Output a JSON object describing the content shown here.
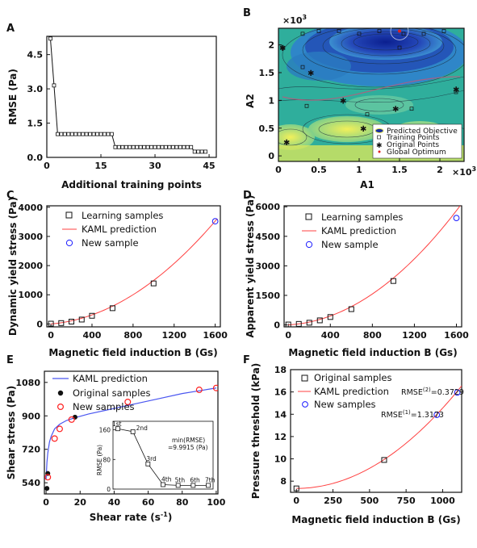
{
  "colors": {
    "model_line": "#ff4040",
    "new_sample": "#1a1aff",
    "learning_sample": "#111111",
    "panel_e_line": "#4a56f0",
    "panel_e_new": "#ff2020",
    "contour_fill_low": "#1a3aa8",
    "contour_fill_mid": "#2fb7b0",
    "contour_fill_high": "#d8e85a"
  },
  "chart_data": [
    {
      "panel": "A",
      "type": "line",
      "xlabel": "Additional training points",
      "ylabel": "RMSE (Pa)",
      "xlim": [
        0,
        47
      ],
      "ylim": [
        0,
        5.3
      ],
      "xticks": [
        "0",
        "15",
        "30",
        "45"
      ],
      "yticks": [
        "0.0",
        "1.5",
        "3.0",
        "4.5"
      ],
      "series": [
        {
          "marker": "square-open",
          "x": [
            1,
            2,
            3,
            4,
            5,
            6,
            7,
            8,
            9,
            10,
            11,
            12,
            13,
            14,
            15,
            16,
            17,
            18,
            19,
            20,
            21,
            22,
            23,
            24,
            25,
            26,
            27,
            28,
            29,
            30,
            31,
            32,
            33,
            34,
            35,
            36,
            37,
            38,
            39,
            40,
            41,
            42,
            43,
            44
          ],
          "y": [
            5.2,
            3.15,
            1.02,
            1.02,
            1.02,
            1.02,
            1.02,
            1.02,
            1.02,
            1.02,
            1.02,
            1.02,
            1.02,
            1.02,
            1.02,
            1.02,
            1.02,
            1.02,
            0.45,
            0.45,
            0.45,
            0.45,
            0.45,
            0.45,
            0.45,
            0.45,
            0.45,
            0.45,
            0.45,
            0.45,
            0.45,
            0.45,
            0.45,
            0.45,
            0.45,
            0.45,
            0.45,
            0.45,
            0.45,
            0.45,
            0.25,
            0.25,
            0.25,
            0.25
          ]
        }
      ]
    },
    {
      "panel": "B",
      "type": "heatmap",
      "xlabel": "A1",
      "ylabel": "A2",
      "x_multiplier": "×10",
      "x_multiplier_exp": "3",
      "y_multiplier": "×10",
      "y_multiplier_exp": "3",
      "xlim": [
        0,
        2.3
      ],
      "ylim": [
        -0.1,
        2.3
      ],
      "xticks": [
        "0",
        "0.5",
        "1",
        "1.5",
        "2"
      ],
      "yticks": [
        "0",
        "0.5",
        "1",
        "1.5",
        "2"
      ],
      "legend": [
        "Predicted Objective",
        "Training Points",
        "Original Points",
        "Global Optimum"
      ],
      "legend_position": "bottom-right",
      "training_points": [
        [
          0.05,
          1.95
        ],
        [
          0.3,
          2.2
        ],
        [
          0.5,
          2.25
        ],
        [
          0.75,
          2.25
        ],
        [
          1.0,
          2.2
        ],
        [
          1.25,
          2.25
        ],
        [
          1.55,
          2.2
        ],
        [
          1.8,
          2.2
        ],
        [
          2.05,
          2.25
        ],
        [
          1.1,
          0.75
        ],
        [
          1.65,
          0.85
        ],
        [
          2.2,
          1.15
        ],
        [
          0.3,
          1.6
        ],
        [
          0.35,
          0.9
        ],
        [
          1.5,
          1.95
        ]
      ],
      "original_points": [
        [
          0.05,
          1.95
        ],
        [
          0.4,
          1.5
        ],
        [
          0.8,
          1.0
        ],
        [
          1.05,
          0.5
        ],
        [
          1.45,
          0.85
        ],
        [
          2.2,
          1.2
        ],
        [
          0.1,
          0.25
        ]
      ],
      "global_optimum": [
        1.5,
        2.25
      ]
    },
    {
      "panel": "C",
      "type": "scatter",
      "xlabel": "Magnetic field induction B (Gs)",
      "ylabel": "Dynamic yield stress (Pa)",
      "xlim": [
        -40,
        1650
      ],
      "ylim": [
        -100,
        4050
      ],
      "xticks": [
        "0",
        "400",
        "800",
        "1200",
        "1600"
      ],
      "yticks": [
        "0",
        "1000",
        "2000",
        "3000",
        "4000"
      ],
      "legend": [
        "Learning samples",
        "KAML prediction",
        "New sample"
      ],
      "legend_position": "top-left",
      "series": [
        {
          "name": "Learning samples",
          "marker": "square-open",
          "x": [
            0,
            100,
            200,
            300,
            400,
            600,
            1000
          ],
          "y": [
            10,
            30,
            80,
            150,
            280,
            540,
            1390
          ]
        },
        {
          "name": "New sample",
          "marker": "circle-open",
          "x": [
            1600
          ],
          "y": [
            3520
          ]
        }
      ],
      "model_curve": {
        "coefficients": [
          0,
          0.3,
          0.00119
        ],
        "x_range": [
          0,
          1620
        ]
      }
    },
    {
      "panel": "D",
      "type": "scatter",
      "xlabel": "Magnetic field induction B (Gs)",
      "ylabel": "Apparent yield stress (Pa)",
      "xlim": [
        -40,
        1650
      ],
      "ylim": [
        -100,
        6050
      ],
      "xticks": [
        "0",
        "400",
        "800",
        "1200",
        "1600"
      ],
      "yticks": [
        "0",
        "1500",
        "3000",
        "4500",
        "6000"
      ],
      "legend": [
        "Learning samples",
        "KAML prediction",
        "New sample"
      ],
      "legend_position": "top-left",
      "series": [
        {
          "name": "Learning samples",
          "marker": "square-open",
          "x": [
            0,
            100,
            200,
            300,
            400,
            600,
            1000
          ],
          "y": [
            20,
            50,
            110,
            230,
            400,
            800,
            2230
          ]
        },
        {
          "name": "New sample",
          "marker": "circle-open",
          "x": [
            1600
          ],
          "y": [
            5430
          ]
        }
      ],
      "model_curve": {
        "coefficients": [
          0,
          0.3,
          0.00208
        ],
        "x_range": [
          0,
          1640
        ]
      }
    },
    {
      "panel": "E",
      "type": "line",
      "xlabel": "Shear rate (s",
      "xlabel_sup": "-1",
      "xlabel_end": ")",
      "ylabel": "Shear stress (Pa)",
      "xlim": [
        -1,
        101
      ],
      "ylim": [
        480,
        1140
      ],
      "xticks": [
        "0",
        "20",
        "40",
        "60",
        "80",
        "100"
      ],
      "yticks": [
        "540",
        "720",
        "900",
        "1080"
      ],
      "legend": [
        "KAML prediction",
        "Original samples",
        "New samples"
      ],
      "legend_position": "top-left",
      "series": [
        {
          "name": "KAML prediction",
          "x": [
            0,
            0.5,
            1,
            2,
            3,
            5,
            8,
            12,
            17,
            25,
            35,
            50,
            65,
            80,
            90,
            100
          ],
          "y": [
            560,
            650,
            700,
            760,
            790,
            830,
            855,
            875,
            890,
            910,
            930,
            960,
            990,
            1020,
            1035,
            1050
          ]
        },
        {
          "name": "Original samples",
          "marker": "circle-filled",
          "x": [
            0.5,
            1,
            17
          ],
          "y": [
            510,
            590,
            893
          ]
        },
        {
          "name": "New samples",
          "marker": "circle-open",
          "x": [
            1,
            5,
            8,
            15,
            48,
            90,
            100
          ],
          "y": [
            570,
            778,
            830,
            880,
            975,
            1040,
            1050
          ]
        }
      ],
      "inset": {
        "ylabel": "RMSE (Pa)",
        "yticks": [
          "0",
          "80",
          "160"
        ],
        "ylim": [
          0,
          170
        ],
        "labels": [
          "1st",
          "2nd",
          "3rd",
          "4th",
          "5th",
          "6th",
          "7th"
        ],
        "values": [
          163,
          155,
          68,
          12,
          10,
          10,
          10
        ],
        "annotation_line1": "min(RMSE)",
        "annotation_line2": "=9.9915 (Pa)"
      }
    },
    {
      "panel": "F",
      "type": "scatter",
      "xlabel": "Magnetic field induction B (Gs)",
      "ylabel": "Pressure threshold (kPa)",
      "xlim": [
        -40,
        1130
      ],
      "ylim": [
        7,
        18
      ],
      "xticks": [
        "0",
        "250",
        "500",
        "750",
        "1000"
      ],
      "yticks": [
        "8",
        "10",
        "12",
        "14",
        "16",
        "18"
      ],
      "legend": [
        "Original samples",
        "KAML prediction",
        "New samples"
      ],
      "legend_position": "top-left",
      "series": [
        {
          "name": "Original samples",
          "marker": "square-open",
          "x": [
            0,
            600
          ],
          "y": [
            7.35,
            9.9
          ]
        },
        {
          "name": "New samples",
          "marker": "circle-open",
          "x": [
            960,
            1100
          ],
          "y": [
            13.95,
            15.95
          ]
        }
      ],
      "model_curve": {
        "coefficients": [
          7.35,
          0,
          7.2e-06
        ],
        "x_range": [
          0,
          1130
        ]
      },
      "annotations": [
        {
          "text": "RMSE",
          "sup": "(2)",
          "value": "=0.3729",
          "x": 930,
          "y": 16.3
        },
        {
          "text": "RMSE",
          "sup": "(1)",
          "value": "=1.3173",
          "x": 730,
          "y": 14.3
        }
      ]
    }
  ],
  "panel_letters": [
    "A",
    "B",
    "C",
    "D",
    "E",
    "F"
  ]
}
